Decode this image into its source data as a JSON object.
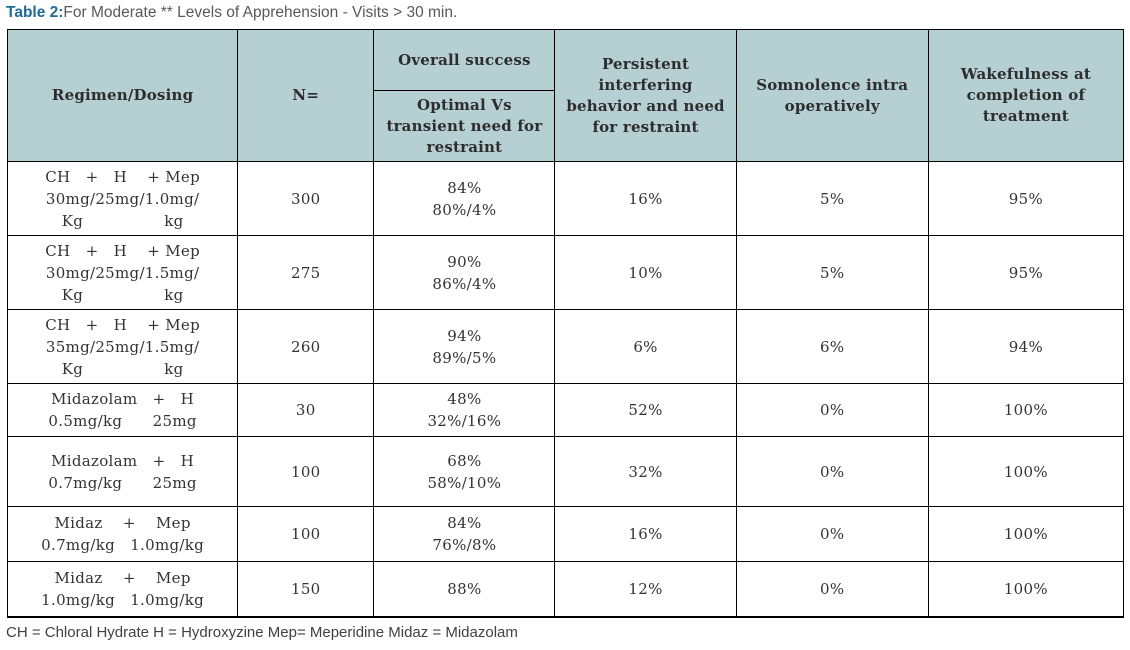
{
  "title": {
    "label": "Table 2:",
    "rest": "For Moderate ** Levels of Apprehension - Visits > 30 min."
  },
  "colors": {
    "header_bg": "#b6cfd3",
    "title_accent": "#1f6a96",
    "title_text": "#58585a",
    "border": "#000000",
    "cell_text": "#333333"
  },
  "table": {
    "headers": {
      "regimen": "Regimen/Dosing",
      "n": "N=",
      "overall": "Overall success",
      "overall_sub": "Optimal Vs transient need for restraint",
      "persistent": "Persistent interfering behavior and need for restraint",
      "somnolence": "Somnolence intra operatively",
      "wakefulness": "Wakefulness at completion of treatment"
    },
    "rows": [
      {
        "regimen": "CH   +   H    + Mep\n30mg/25mg/1.0mg/\nKg                kg",
        "n": "300",
        "success": "84%\n80%/4%",
        "persistent": "16%",
        "somnolence": "5%",
        "wakefulness": "95%"
      },
      {
        "regimen": "CH   +   H    + Mep\n30mg/25mg/1.5mg/\nKg                kg",
        "n": "275",
        "success": "90%\n86%/4%",
        "persistent": "10%",
        "somnolence": "5%",
        "wakefulness": "95%"
      },
      {
        "regimen": "CH   +   H    + Mep\n35mg/25mg/1.5mg/\nKg                kg",
        "n": "260",
        "success": "94%\n89%/5%",
        "persistent": "6%",
        "somnolence": "6%",
        "wakefulness": "94%"
      },
      {
        "regimen": "Midazolam   +   H\n0.5mg/kg      25mg",
        "n": "30",
        "success": "48%\n32%/16%",
        "persistent": "52%",
        "somnolence": "0%",
        "wakefulness": "100%"
      },
      {
        "regimen": "Midazolam   +   H\n0.7mg/kg      25mg",
        "n": "100",
        "success": "68%\n58%/10%",
        "persistent": "32%",
        "somnolence": "0%",
        "wakefulness": "100%"
      },
      {
        "regimen": "Midaz    +    Mep\n0.7mg/kg   1.0mg/kg",
        "n": "100",
        "success": "84%\n76%/8%",
        "persistent": "16%",
        "somnolence": "0%",
        "wakefulness": "100%"
      },
      {
        "regimen": "Midaz    +    Mep\n1.0mg/kg   1.0mg/kg",
        "n": "150",
        "success": "88%",
        "persistent": "12%",
        "somnolence": "0%",
        "wakefulness": "100%"
      }
    ]
  },
  "footnote": "CH = Chloral Hydrate H = Hydroxyzine Mep= Meperidine Midaz = Midazolam"
}
